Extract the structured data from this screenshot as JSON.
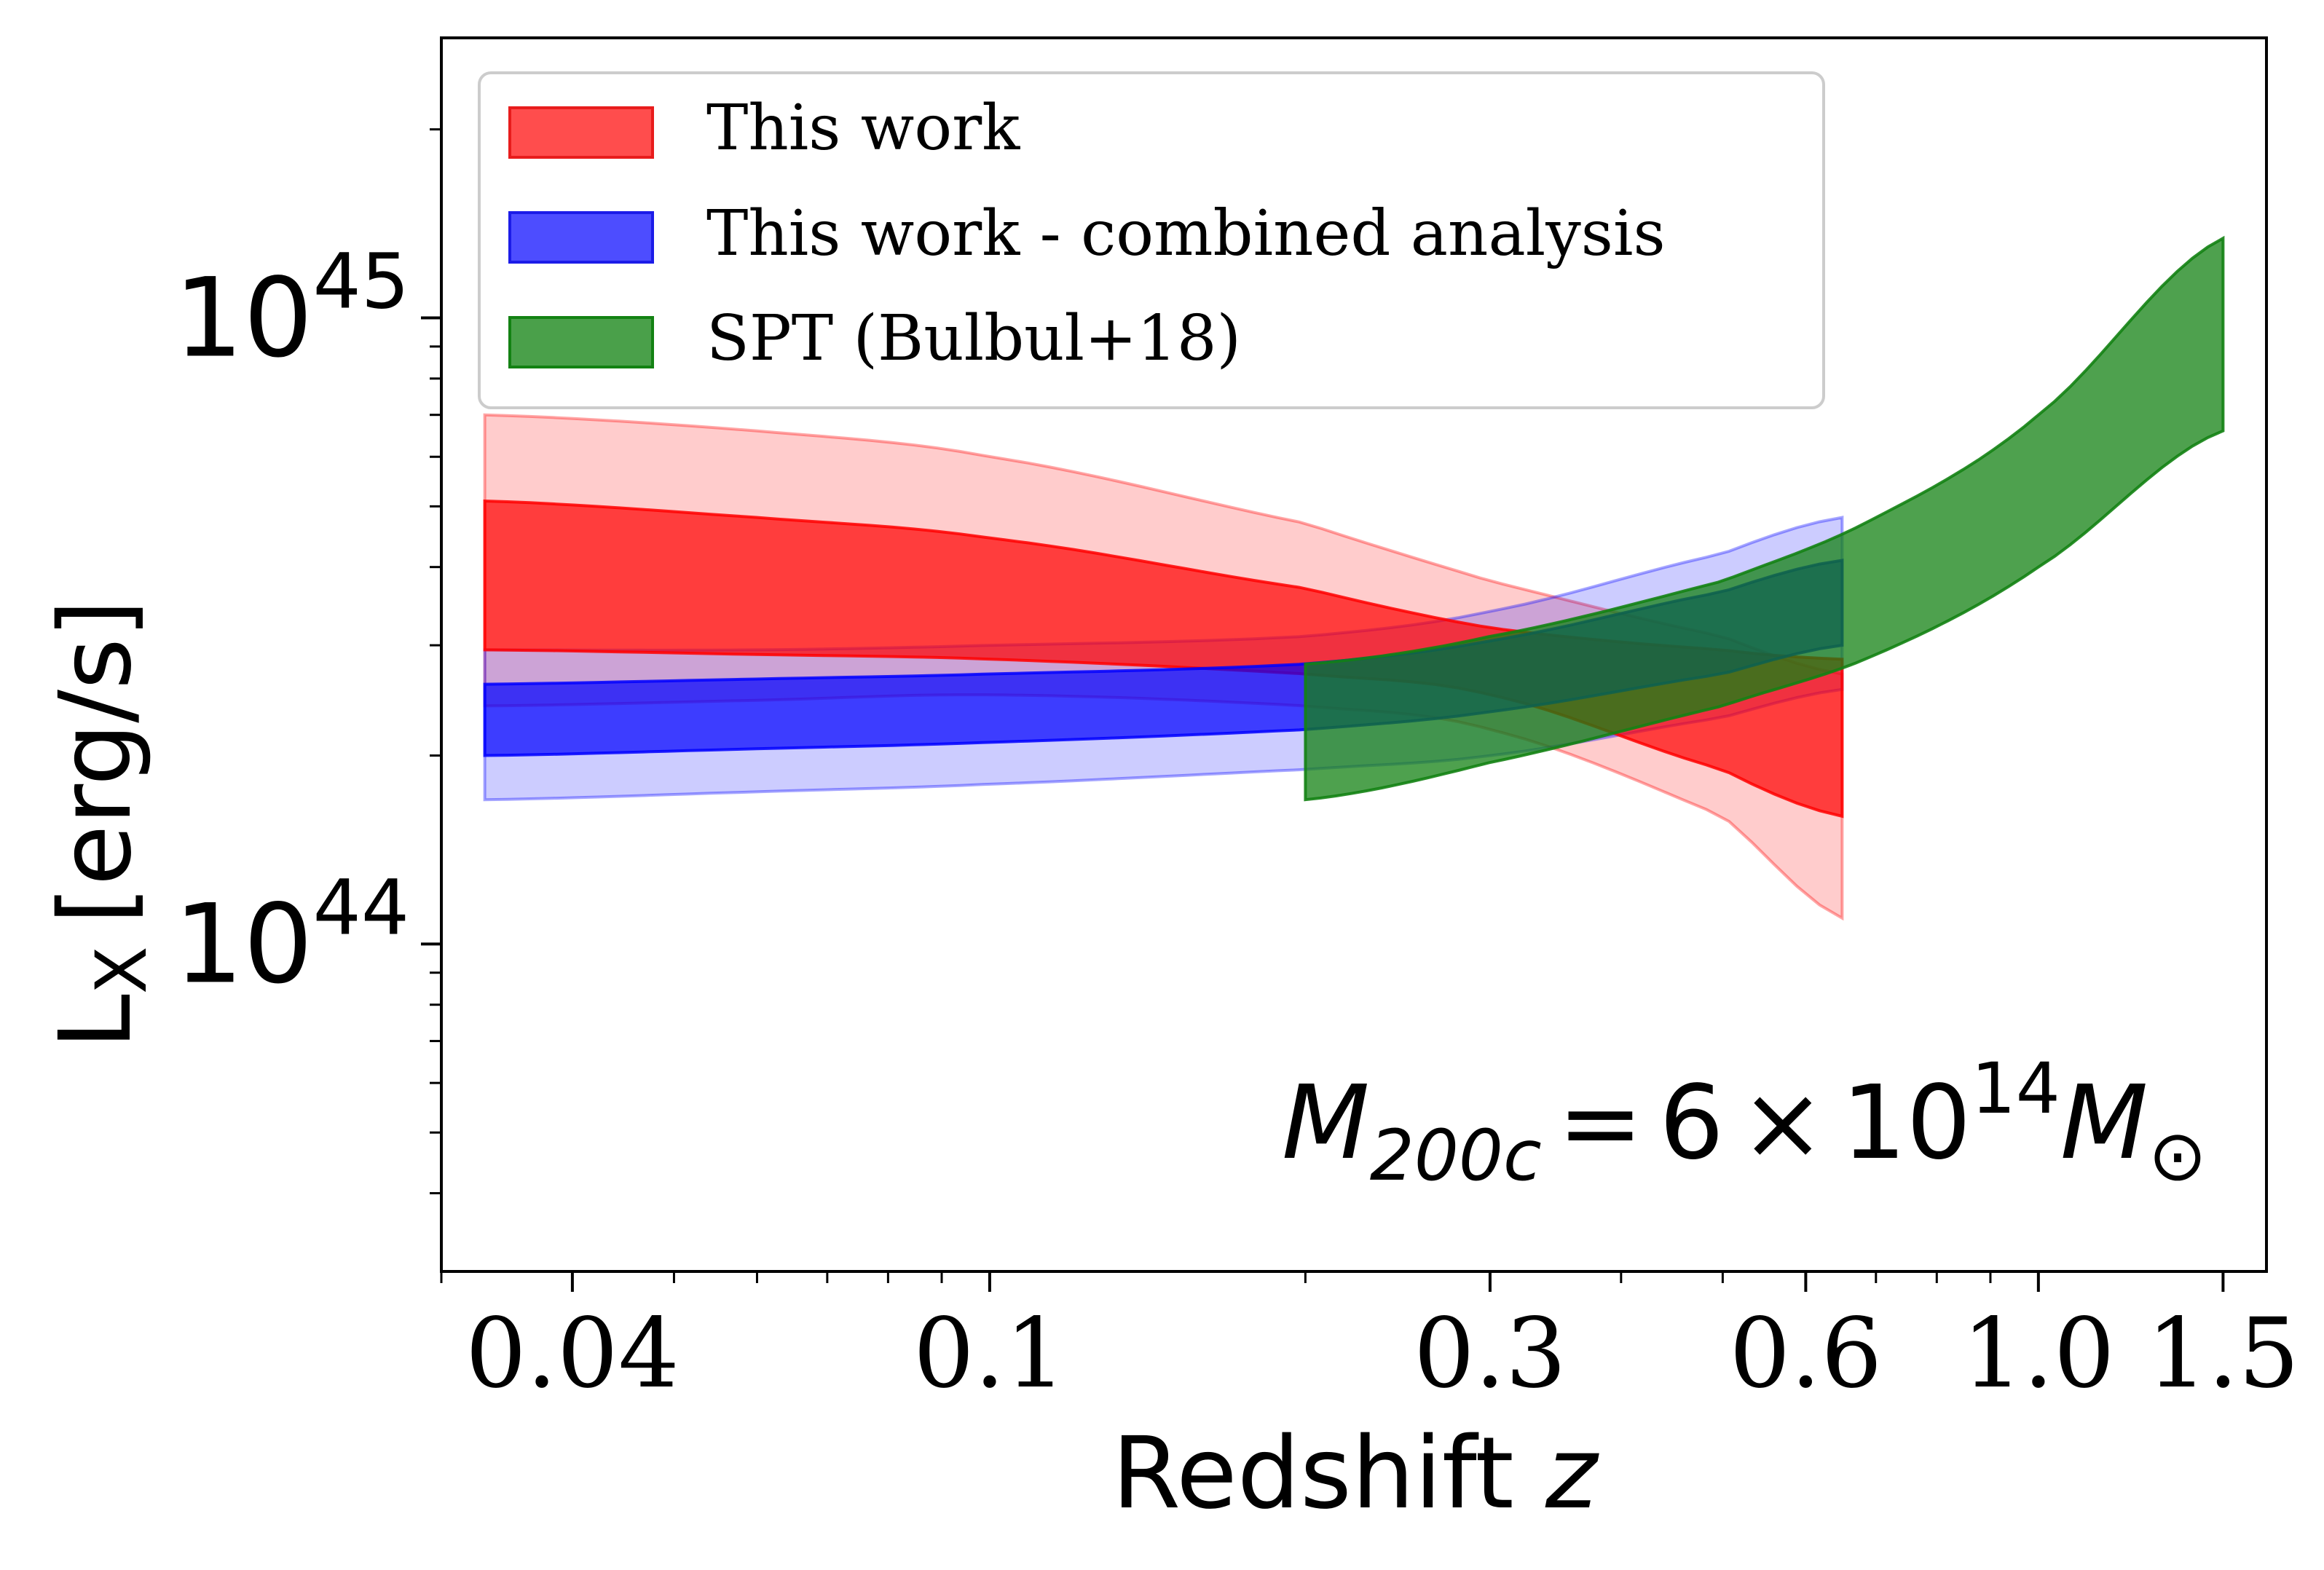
{
  "chart_data": {
    "type": "area",
    "title": "",
    "xlabel": "Redshift",
    "xlabel_var": "z",
    "ylabel": "L",
    "ylabel_sub": "X",
    "ylabel_unit": "[erg/s]",
    "xscale": "log",
    "yscale": "log",
    "xlim": [
      0.03,
      1.65
    ],
    "ylim": [
      3e+43,
      2.8e+45
    ],
    "x_ticks": [
      {
        "value": 0.04,
        "label": "0.04"
      },
      {
        "value": 0.1,
        "label": "0.1"
      },
      {
        "value": 0.3,
        "label": "0.3"
      },
      {
        "value": 0.6,
        "label": "0.6"
      },
      {
        "value": 1.0,
        "label": "1.0"
      },
      {
        "value": 1.5,
        "label": "1.5"
      }
    ],
    "x_minor_ticks": [
      0.03,
      0.05,
      0.06,
      0.07,
      0.08,
      0.09,
      0.2,
      0.4,
      0.5,
      0.7,
      0.8,
      0.9
    ],
    "y_ticks": [
      {
        "value": 1e+44,
        "base": "10",
        "exp": "44"
      },
      {
        "value": 1e+45,
        "base": "10",
        "exp": "45"
      }
    ],
    "y_minor_ticks": [
      4e+43,
      5e+43,
      6e+43,
      7e+43,
      8e+43,
      9e+43,
      2e+44,
      3e+44,
      4e+44,
      5e+44,
      6e+44,
      7e+44,
      8e+44,
      9e+44,
      2e+45
    ],
    "annotation": {
      "lhs": "M",
      "lhs_sub": "200c",
      "equals": "=",
      "coef": "6",
      "times": "×",
      "base": "10",
      "exp": "14",
      "rhs": "M",
      "rhs_sub": "⊙"
    },
    "legend": {
      "position": "top-left",
      "entries": [
        {
          "label": "This work",
          "color": "#ff4d4d",
          "edge": "#e81c1c"
        },
        {
          "label": "This work - combined analysis",
          "color": "#4d4dff",
          "edge": "#1c1ce8"
        },
        {
          "label": "SPT (Bulbul+18)",
          "color": "#4aa04a",
          "edge": "#138213"
        }
      ]
    },
    "series": [
      {
        "name": "This work (outer band)",
        "color": "#ff0000",
        "opacity": 0.2,
        "x": [
          0.033,
          0.06,
          0.1,
          0.2,
          0.3,
          0.5,
          0.65
        ],
        "lower": [
          2.4e+44,
          2.45e+44,
          2.5e+44,
          2.4e+44,
          2.2e+44,
          1.6e+44,
          1.1e+44
        ],
        "upper": [
          7e+44,
          6.6e+44,
          6e+44,
          4.7e+44,
          3.8e+44,
          3.1e+44,
          2.7e+44
        ]
      },
      {
        "name": "This work - combined analysis (outer band)",
        "color": "#0000ff",
        "opacity": 0.2,
        "x": [
          0.033,
          0.06,
          0.1,
          0.2,
          0.3,
          0.5,
          0.65
        ],
        "lower": [
          1.7e+44,
          1.75e+44,
          1.8e+44,
          1.9e+44,
          2e+44,
          2.3e+44,
          2.55e+44
        ],
        "upper": [
          2.95e+44,
          2.95e+44,
          3e+44,
          3.1e+44,
          3.4e+44,
          4.2e+44,
          4.8e+44
        ]
      },
      {
        "name": "This work",
        "color": "#ff0000",
        "opacity": 0.7,
        "x": [
          0.033,
          0.06,
          0.1,
          0.2,
          0.3,
          0.5,
          0.65
        ],
        "lower": [
          2.95e+44,
          2.9e+44,
          2.85e+44,
          2.7e+44,
          2.5e+44,
          1.9e+44,
          1.6e+44
        ],
        "upper": [
          5.1e+44,
          4.8e+44,
          4.45e+44,
          3.7e+44,
          3.2e+44,
          2.95e+44,
          2.85e+44
        ]
      },
      {
        "name": "This work - combined analysis",
        "color": "#0000ff",
        "opacity": 0.7,
        "x": [
          0.033,
          0.06,
          0.1,
          0.2,
          0.3,
          0.5,
          0.65
        ],
        "lower": [
          2e+44,
          2.05e+44,
          2.1e+44,
          2.2e+44,
          2.35e+44,
          2.7e+44,
          3e+44
        ],
        "upper": [
          2.6e+44,
          2.65e+44,
          2.7e+44,
          2.8e+44,
          3.05e+44,
          3.65e+44,
          4.1e+44
        ]
      },
      {
        "name": "SPT (Bulbul+18)",
        "color": "#138213",
        "opacity": 0.75,
        "x": [
          0.2,
          0.3,
          0.5,
          0.7,
          1.0,
          1.5
        ],
        "lower": [
          1.7e+44,
          1.95e+44,
          2.4e+44,
          2.9e+44,
          4e+44,
          6.6e+44
        ],
        "upper": [
          2.8e+44,
          3.1e+44,
          3.8e+44,
          4.8e+44,
          7e+44,
          1.34e+45
        ]
      }
    ]
  }
}
